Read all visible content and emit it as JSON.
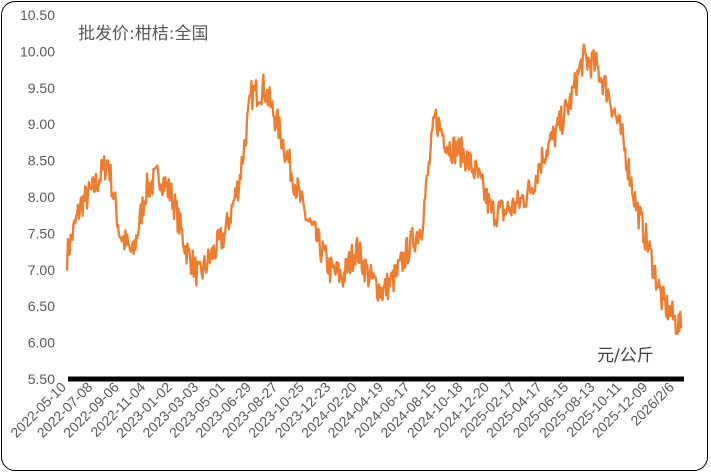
{
  "chart_data": {
    "type": "line",
    "title": "批发价:柑桔:全国",
    "unit_label": "元/公斤",
    "ylim": [
      5.5,
      10.5
    ],
    "y_ticks": [
      "10.50",
      "10.00",
      "9.50",
      "9.00",
      "8.50",
      "8.00",
      "7.50",
      "7.00",
      "6.50",
      "6.00",
      "5.50"
    ],
    "x_ticks": [
      "2022-05-10",
      "2022-07-08",
      "2022-09-06",
      "2022-11-04",
      "2023-01-02",
      "2023-03-03",
      "2023-05-01",
      "2023-06-29",
      "2023-08-27",
      "2023-10-25",
      "2023-12-23",
      "2024-02-20",
      "2024-04-19",
      "2024-06-17",
      "2024-08-15",
      "2024-10-18",
      "2024-12-20",
      "2025-02-17",
      "2025-04-17",
      "2025-06-15",
      "2025-08-13",
      "2025-10-11",
      "2025-12-09",
      "2026/2/6"
    ],
    "grid": false,
    "series": [
      {
        "color": "#ED7D31",
        "x": [
          "2022-05-10",
          "2022-06-10",
          "2022-07-08",
          "2022-08-10",
          "2022-09-06",
          "2022-10-05",
          "2022-11-04",
          "2022-12-05",
          "2023-01-02",
          "2023-02-01",
          "2023-03-03",
          "2023-04-01",
          "2023-05-01",
          "2023-06-01",
          "2023-06-29",
          "2023-07-28",
          "2023-08-27",
          "2023-09-25",
          "2023-10-25",
          "2023-11-24",
          "2023-12-23",
          "2024-01-21",
          "2024-02-20",
          "2024-03-20",
          "2024-04-19",
          "2024-05-18",
          "2024-06-17",
          "2024-07-16",
          "2024-08-15",
          "2024-09-15",
          "2024-10-18",
          "2024-11-18",
          "2024-12-20",
          "2025-01-18",
          "2025-02-17",
          "2025-03-18",
          "2025-04-17",
          "2025-05-16",
          "2025-06-15",
          "2025-07-14",
          "2025-08-13",
          "2025-09-11",
          "2025-10-11",
          "2025-11-10",
          "2025-12-09",
          "2026-01-07",
          "2026-02-06",
          "2026-02-20"
        ],
        "values": [
          7.2,
          7.9,
          8.1,
          8.5,
          7.5,
          7.2,
          8.1,
          8.3,
          8.0,
          7.3,
          6.9,
          7.2,
          7.5,
          8.2,
          9.4,
          9.5,
          9.0,
          8.4,
          7.8,
          7.4,
          7.0,
          6.9,
          7.3,
          6.9,
          6.7,
          6.9,
          7.3,
          7.6,
          9.1,
          8.7,
          8.6,
          8.3,
          7.8,
          7.8,
          7.9,
          8.1,
          8.6,
          8.9,
          9.3,
          9.9,
          9.8,
          9.4,
          8.8,
          7.9,
          7.3,
          6.6,
          6.3,
          6.2
        ]
      }
    ]
  }
}
